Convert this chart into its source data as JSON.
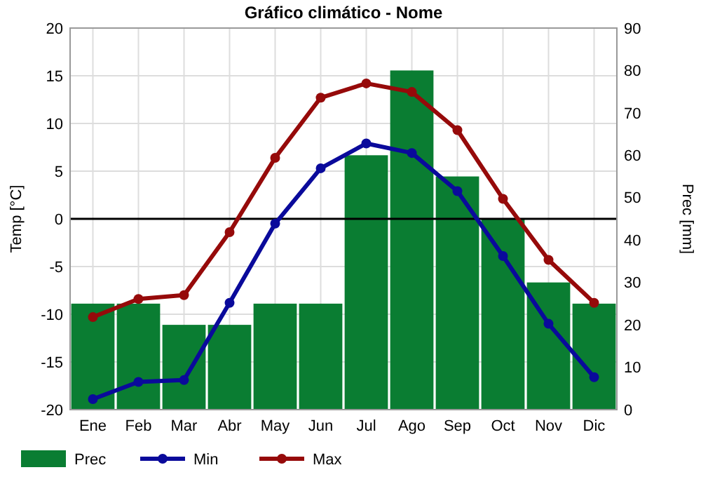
{
  "chart_data": {
    "type": "bar",
    "title": "Gráfico climático - Nome",
    "ylabel": "Temp [°C]",
    "y2label": "Prec [mm]",
    "categories": [
      "Ene",
      "Feb",
      "Mar",
      "Abr",
      "May",
      "Jun",
      "Jul",
      "Ago",
      "Sep",
      "Oct",
      "Nov",
      "Dic"
    ],
    "series": [
      {
        "name": "Prec",
        "axis": "y2",
        "color": "#0a7d32",
        "values": [
          25,
          25,
          20,
          20,
          25,
          25,
          60,
          80,
          55,
          45,
          30,
          25
        ]
      },
      {
        "name": "Min",
        "type": "line",
        "color": "#0a0a9b",
        "values": [
          -18.9,
          -17.1,
          -16.9,
          -8.8,
          -0.5,
          5.3,
          7.9,
          6.9,
          2.9,
          -3.9,
          -11,
          -16.6
        ]
      },
      {
        "name": "Max",
        "type": "line",
        "color": "#960a0a",
        "values": [
          -10.3,
          -8.4,
          -8,
          -1.4,
          6.4,
          12.7,
          14.2,
          13.3,
          9.3,
          2.1,
          -4.3,
          -8.8
        ]
      }
    ],
    "ylim": [
      -20,
      20
    ],
    "yticks": [
      -20,
      -15,
      -10,
      -5,
      0,
      5,
      10,
      15,
      20
    ],
    "y2lim": [
      0,
      90
    ],
    "y2ticks": [
      0,
      10,
      20,
      30,
      40,
      50,
      60,
      70,
      80,
      90
    ],
    "ref_lines": [
      {
        "axis": "y",
        "value": 0,
        "color": "#000000"
      }
    ],
    "grid": true,
    "legend": "bottom",
    "marker": "circle",
    "line_style": "solid"
  }
}
